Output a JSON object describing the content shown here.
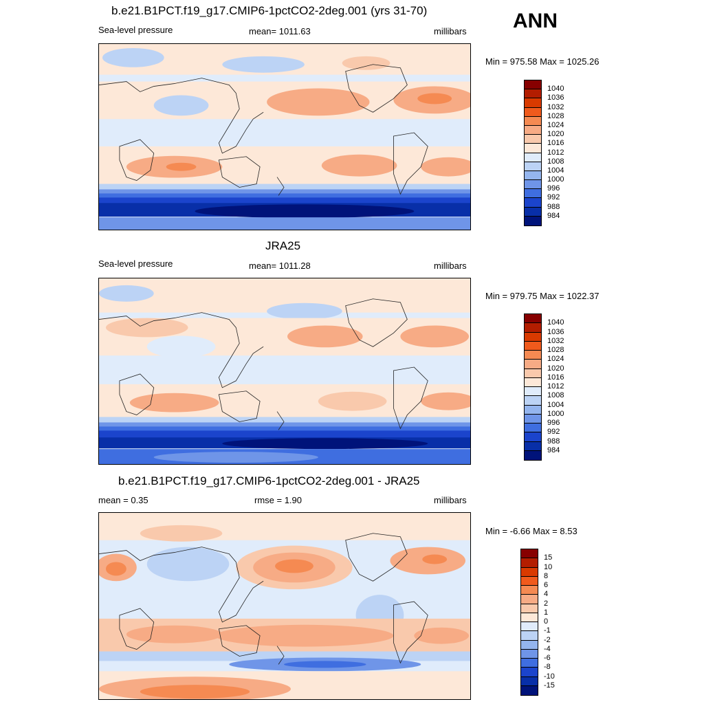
{
  "season": "ANN",
  "panels": [
    {
      "title": "b.e21.B1PCT.f19_g17.CMIP6-1pctCO2-2deg.001 (yrs 31-70)",
      "left_text": "Sea-level pressure",
      "center_text": "mean= 1011.63",
      "right_text": "millibars",
      "minmax": "Min = 975.58 Max = 1025.26"
    },
    {
      "title": "JRA25",
      "left_text": "Sea-level pressure",
      "center_text": "mean= 1011.28",
      "right_text": "millibars",
      "minmax": "Min = 979.75 Max = 1022.37"
    },
    {
      "title": "b.e21.B1PCT.f19_g17.CMIP6-1pctCO2-2deg.001 - JRA25",
      "left_text": "mean =   0.35",
      "center_text": "rmse =   1.90",
      "right_text": "millibars",
      "minmax": "Min =  -6.66 Max =   8.53"
    }
  ],
  "chart_data": [
    {
      "type": "heatmap",
      "title": "b.e21.B1PCT.f19_g17.CMIP6-1pctCO2-2deg.001 (yrs 31-70)",
      "variable": "Sea-level pressure",
      "units": "millibars",
      "mean": 1011.63,
      "min": 975.58,
      "max": 1025.26,
      "colorbar": {
        "labels": [
          "1040",
          "1036",
          "1032",
          "1028",
          "1024",
          "1020",
          "1016",
          "1012",
          "1008",
          "1004",
          "1000",
          "996",
          "992",
          "988",
          "984"
        ],
        "colors": [
          "#870000",
          "#b31d00",
          "#d93a00",
          "#f05a1c",
          "#f58a52",
          "#f7ab85",
          "#f9c9ac",
          "#fde8d8",
          "#e0ecfb",
          "#bcd3f5",
          "#94b5ee",
          "#6f95e8",
          "#3f6ee0",
          "#1b44cc",
          "#082fa8",
          "#00137a"
        ]
      }
    },
    {
      "type": "heatmap",
      "title": "JRA25",
      "variable": "Sea-level pressure",
      "units": "millibars",
      "mean": 1011.28,
      "min": 979.75,
      "max": 1022.37,
      "colorbar": {
        "labels": [
          "1040",
          "1036",
          "1032",
          "1028",
          "1024",
          "1020",
          "1016",
          "1012",
          "1008",
          "1004",
          "1000",
          "996",
          "992",
          "988",
          "984"
        ],
        "colors": [
          "#870000",
          "#b31d00",
          "#d93a00",
          "#f05a1c",
          "#f58a52",
          "#f7ab85",
          "#f9c9ac",
          "#fde8d8",
          "#e0ecfb",
          "#bcd3f5",
          "#94b5ee",
          "#6f95e8",
          "#3f6ee0",
          "#1b44cc",
          "#082fa8",
          "#00137a"
        ]
      }
    },
    {
      "type": "heatmap",
      "title": "b.e21.B1PCT.f19_g17.CMIP6-1pctCO2-2deg.001 - JRA25",
      "units": "millibars",
      "mean": 0.35,
      "rmse": 1.9,
      "min": -6.66,
      "max": 8.53,
      "colorbar": {
        "labels": [
          "15",
          "10",
          "8",
          "6",
          "4",
          "2",
          "1",
          "0",
          "-1",
          "-2",
          "-4",
          "-6",
          "-8",
          "-10",
          "-15"
        ],
        "colors": [
          "#870000",
          "#b31d00",
          "#d93a00",
          "#f05a1c",
          "#f58a52",
          "#f7ab85",
          "#f9c9ac",
          "#fde8d8",
          "#e0ecfb",
          "#bcd3f5",
          "#94b5ee",
          "#6f95e8",
          "#3f6ee0",
          "#1b44cc",
          "#082fa8",
          "#00137a"
        ]
      }
    }
  ]
}
